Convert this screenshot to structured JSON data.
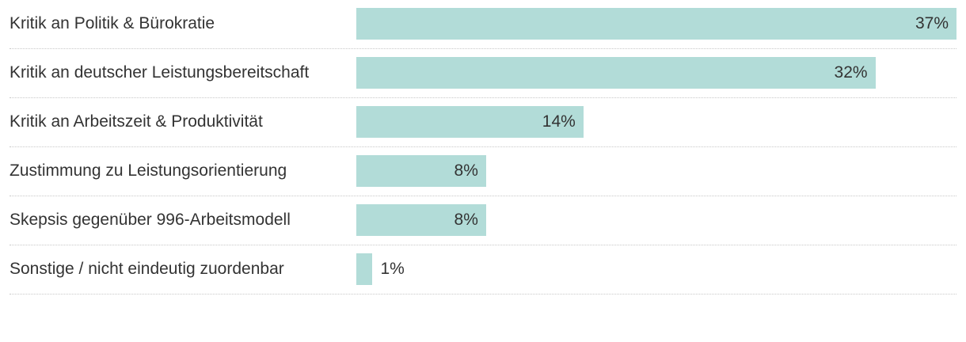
{
  "chart_data": {
    "type": "bar",
    "orientation": "horizontal",
    "categories": [
      "Kritik an Politik & Bürokratie",
      "Kritik an deutscher Leistungsbereitschaft",
      "Kritik an Arbeitszeit & Produktivität",
      "Zustimmung zu Leistungsorientierung",
      "Skepsis gegenüber 996-Arbeitsmodell",
      "Sonstige / nicht eindeutig zuordenbar"
    ],
    "values": [
      37,
      32,
      14,
      8,
      8,
      1
    ],
    "value_labels": [
      "37%",
      "32%",
      "14%",
      "8%",
      "8%",
      "1%"
    ],
    "unit": "%",
    "title": "",
    "xlabel": "",
    "ylabel": "",
    "xlim": [
      0,
      37
    ],
    "grid": false,
    "legend": "none",
    "colors": {
      "bar": "#b2dcd8",
      "text": "#333333",
      "divider": "#c8c8c8"
    }
  }
}
